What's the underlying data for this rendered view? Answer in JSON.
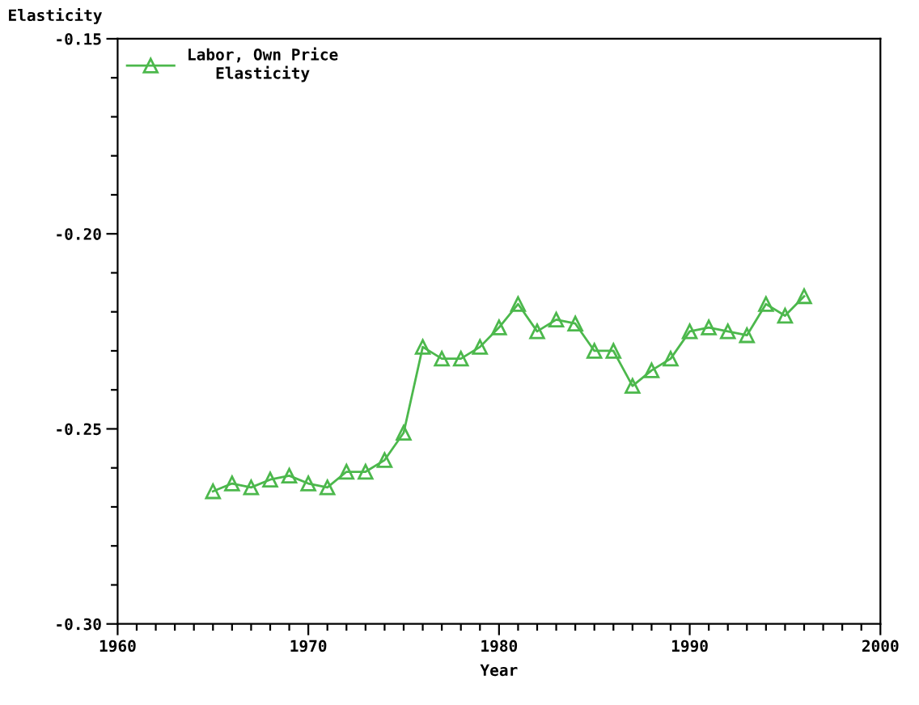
{
  "chart_data": {
    "type": "line",
    "xlabel": "Year",
    "ylabel": "Elasticity",
    "x": [
      1965,
      1966,
      1967,
      1968,
      1969,
      1970,
      1971,
      1972,
      1973,
      1974,
      1975,
      1976,
      1977,
      1978,
      1979,
      1980,
      1981,
      1982,
      1983,
      1984,
      1985,
      1986,
      1987,
      1988,
      1989,
      1990,
      1991,
      1992,
      1993,
      1994,
      1995,
      1996
    ],
    "series": [
      {
        "name": "Labor, Own Price\nElasticity",
        "color": "#4cb84c",
        "values": [
          -0.266,
          -0.264,
          -0.265,
          -0.263,
          -0.262,
          -0.264,
          -0.265,
          -0.261,
          -0.261,
          -0.258,
          -0.251,
          -0.229,
          -0.232,
          -0.232,
          -0.229,
          -0.224,
          -0.218,
          -0.225,
          -0.222,
          -0.223,
          -0.23,
          -0.23,
          -0.239,
          -0.235,
          -0.232,
          -0.225,
          -0.224,
          -0.225,
          -0.226,
          -0.218,
          -0.221,
          -0.216
        ]
      }
    ],
    "xlim": [
      1960,
      2000
    ],
    "ylim": [
      -0.3,
      -0.15
    ],
    "xticks": [
      1960,
      {
        "value": 1961,
        "label": null
      },
      {
        "value": 1962,
        "label": null
      },
      {
        "value": 1963,
        "label": null
      },
      {
        "value": 1964,
        "label": null
      },
      {
        "value": 1965,
        "label": null
      },
      {
        "value": 1966,
        "label": null
      },
      {
        "value": 1967,
        "label": null
      },
      {
        "value": 1968,
        "label": null
      },
      {
        "value": 1969,
        "label": null
      },
      1970,
      {
        "value": 1971,
        "label": null
      },
      {
        "value": 1972,
        "label": null
      },
      {
        "value": 1973,
        "label": null
      },
      {
        "value": 1974,
        "label": null
      },
      {
        "value": 1975,
        "label": null
      },
      {
        "value": 1976,
        "label": null
      },
      {
        "value": 1977,
        "label": null
      },
      {
        "value": 1978,
        "label": null
      },
      {
        "value": 1979,
        "label": null
      },
      1980,
      {
        "value": 1981,
        "label": null
      },
      {
        "value": 1982,
        "label": null
      },
      {
        "value": 1983,
        "label": null
      },
      {
        "value": 1984,
        "label": null
      },
      {
        "value": 1985,
        "label": null
      },
      {
        "value": 1986,
        "label": null
      },
      {
        "value": 1987,
        "label": null
      },
      {
        "value": 1988,
        "label": null
      },
      {
        "value": 1989,
        "label": null
      },
      1990,
      {
        "value": 1991,
        "label": null
      },
      {
        "value": 1992,
        "label": null
      },
      {
        "value": 1993,
        "label": null
      },
      {
        "value": 1994,
        "label": null
      },
      {
        "value": 1995,
        "label": null
      },
      {
        "value": 1996,
        "label": null
      },
      {
        "value": 1997,
        "label": null
      },
      {
        "value": 1998,
        "label": null
      },
      {
        "value": 1999,
        "label": null
      },
      2000
    ],
    "yticks": [
      {
        "value": -0.3,
        "label": "-0.30"
      },
      {
        "value": -0.29,
        "label": null
      },
      {
        "value": -0.28,
        "label": null
      },
      {
        "value": -0.27,
        "label": null
      },
      {
        "value": -0.26,
        "label": null
      },
      {
        "value": -0.25,
        "label": "-0.25"
      },
      {
        "value": -0.24,
        "label": null
      },
      {
        "value": -0.23,
        "label": null
      },
      {
        "value": -0.22,
        "label": null
      },
      {
        "value": -0.21,
        "label": null
      },
      {
        "value": -0.2,
        "label": "-0.20"
      },
      {
        "value": -0.19,
        "label": null
      },
      {
        "value": -0.18,
        "label": null
      },
      {
        "value": -0.17,
        "label": null
      },
      {
        "value": -0.16,
        "label": null
      },
      {
        "value": -0.15,
        "label": "-0.15"
      }
    ],
    "marker": "triangle",
    "line_style": "solid",
    "grid": false,
    "legend": "top left"
  }
}
